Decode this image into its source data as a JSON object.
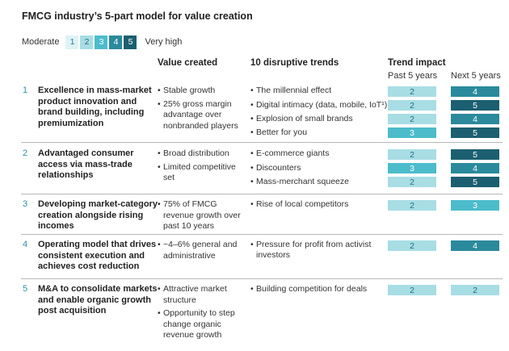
{
  "title": "FMCG industry’s 5-part model for value creation",
  "legend": {
    "low_label": "Moderate",
    "high_label": "Very high",
    "levels": [
      "1",
      "2",
      "3",
      "4",
      "5"
    ]
  },
  "level_colors": {
    "1": {
      "bg": "#dff2f4",
      "fg": "#2a7f93"
    },
    "2": {
      "bg": "#a8dde4",
      "fg": "#1f6f82"
    },
    "3": {
      "bg": "#4cbccb",
      "fg": "#ffffff"
    },
    "4": {
      "bg": "#2a8a9c",
      "fg": "#ffffff"
    },
    "5": {
      "bg": "#1b5f70",
      "fg": "#ffffff"
    }
  },
  "headers": {
    "value_created": "Value created",
    "trends": "10 disruptive trends",
    "impact": "Trend impact",
    "past": "Past 5 years",
    "next": "Next 5 years"
  },
  "rows": [
    {
      "num": "1",
      "model": "Excellence in mass-market product innovation and brand building, including premiumization",
      "values": [
        "Stable growth",
        "25% gross margin advantage over nonbranded players"
      ],
      "trends": [
        {
          "name": "The millennial effect",
          "past": "2",
          "next": "4"
        },
        {
          "name": "Digital intimacy (data, mobile, IoT¹)",
          "past": "2",
          "next": "5"
        },
        {
          "name": "Explosion of small brands",
          "past": "2",
          "next": "4"
        },
        {
          "name": "Better for you",
          "past": "3",
          "next": "5"
        }
      ]
    },
    {
      "num": "2",
      "model": "Advantaged consumer access via mass-trade relationships",
      "values": [
        "Broad distribution",
        "Limited competitive set"
      ],
      "trends": [
        {
          "name": "E-commerce giants",
          "past": "2",
          "next": "5"
        },
        {
          "name": "Discounters",
          "past": "3",
          "next": "4"
        },
        {
          "name": "Mass-merchant squeeze",
          "past": "2",
          "next": "5"
        }
      ]
    },
    {
      "num": "3",
      "model": "Developing market-category creation alongside rising incomes",
      "values": [
        "75% of FMCG revenue growth over past 10 years"
      ],
      "trends": [
        {
          "name": "Rise of local competitors",
          "past": "2",
          "next": "3"
        }
      ]
    },
    {
      "num": "4",
      "model": "Operating model that drives consistent execution and achieves cost reduction",
      "values": [
        "~4–6% general and administrative"
      ],
      "trends": [
        {
          "name": "Pressure for profit from activist investors",
          "past": "2",
          "next": "4"
        }
      ]
    },
    {
      "num": "5",
      "model": "M&A to consolidate markets and enable organic growth post acquisition",
      "values": [
        "Attractive market structure",
        "Opportunity to step change organic revenue growth"
      ],
      "trends": [
        {
          "name": "Building competition for deals",
          "past": "2",
          "next": "2"
        }
      ]
    }
  ]
}
